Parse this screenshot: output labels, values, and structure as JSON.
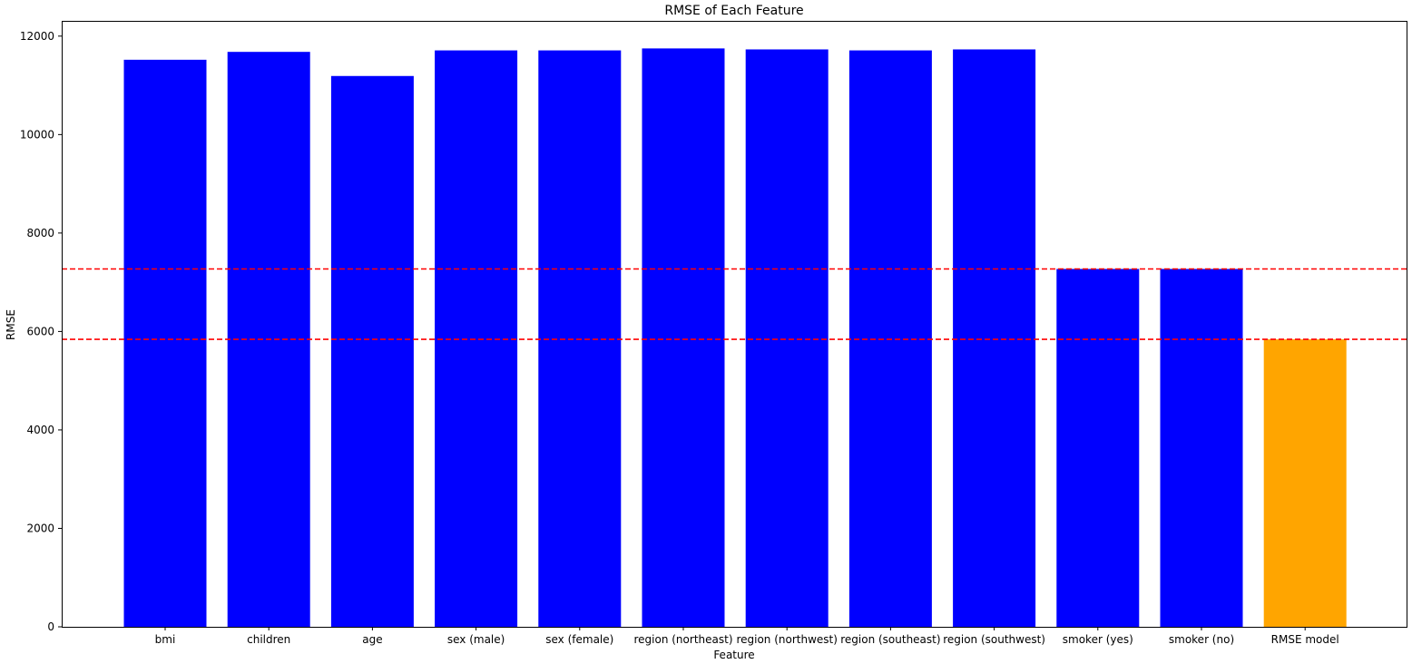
{
  "chart_data": {
    "type": "bar",
    "title": "RMSE of Each Feature",
    "xlabel": "Feature",
    "ylabel": "RMSE",
    "categories": [
      "bmi",
      "children",
      "age",
      "sex (male)",
      "sex (female)",
      "region (northeast)",
      "region (northwest)",
      "region (southeast)",
      "region (southwest)",
      "smoker (yes)",
      "smoker (no)",
      "RMSE model"
    ],
    "values": [
      11520,
      11680,
      11190,
      11710,
      11710,
      11750,
      11730,
      11710,
      11730,
      7270,
      7270,
      5840
    ],
    "bar_colors": [
      "#0000ff",
      "#0000ff",
      "#0000ff",
      "#0000ff",
      "#0000ff",
      "#0000ff",
      "#0000ff",
      "#0000ff",
      "#0000ff",
      "#0000ff",
      "#0000ff",
      "#ffa500"
    ],
    "yticks": [
      0,
      2000,
      4000,
      6000,
      8000,
      10000,
      12000
    ],
    "ylim": [
      0,
      12310
    ],
    "reference_lines": [
      {
        "y": 7270,
        "color": "#ff0000",
        "style": "dashed"
      },
      {
        "y": 5840,
        "color": "#ff0000",
        "style": "dashed"
      }
    ],
    "grid": false,
    "legend": "none"
  }
}
